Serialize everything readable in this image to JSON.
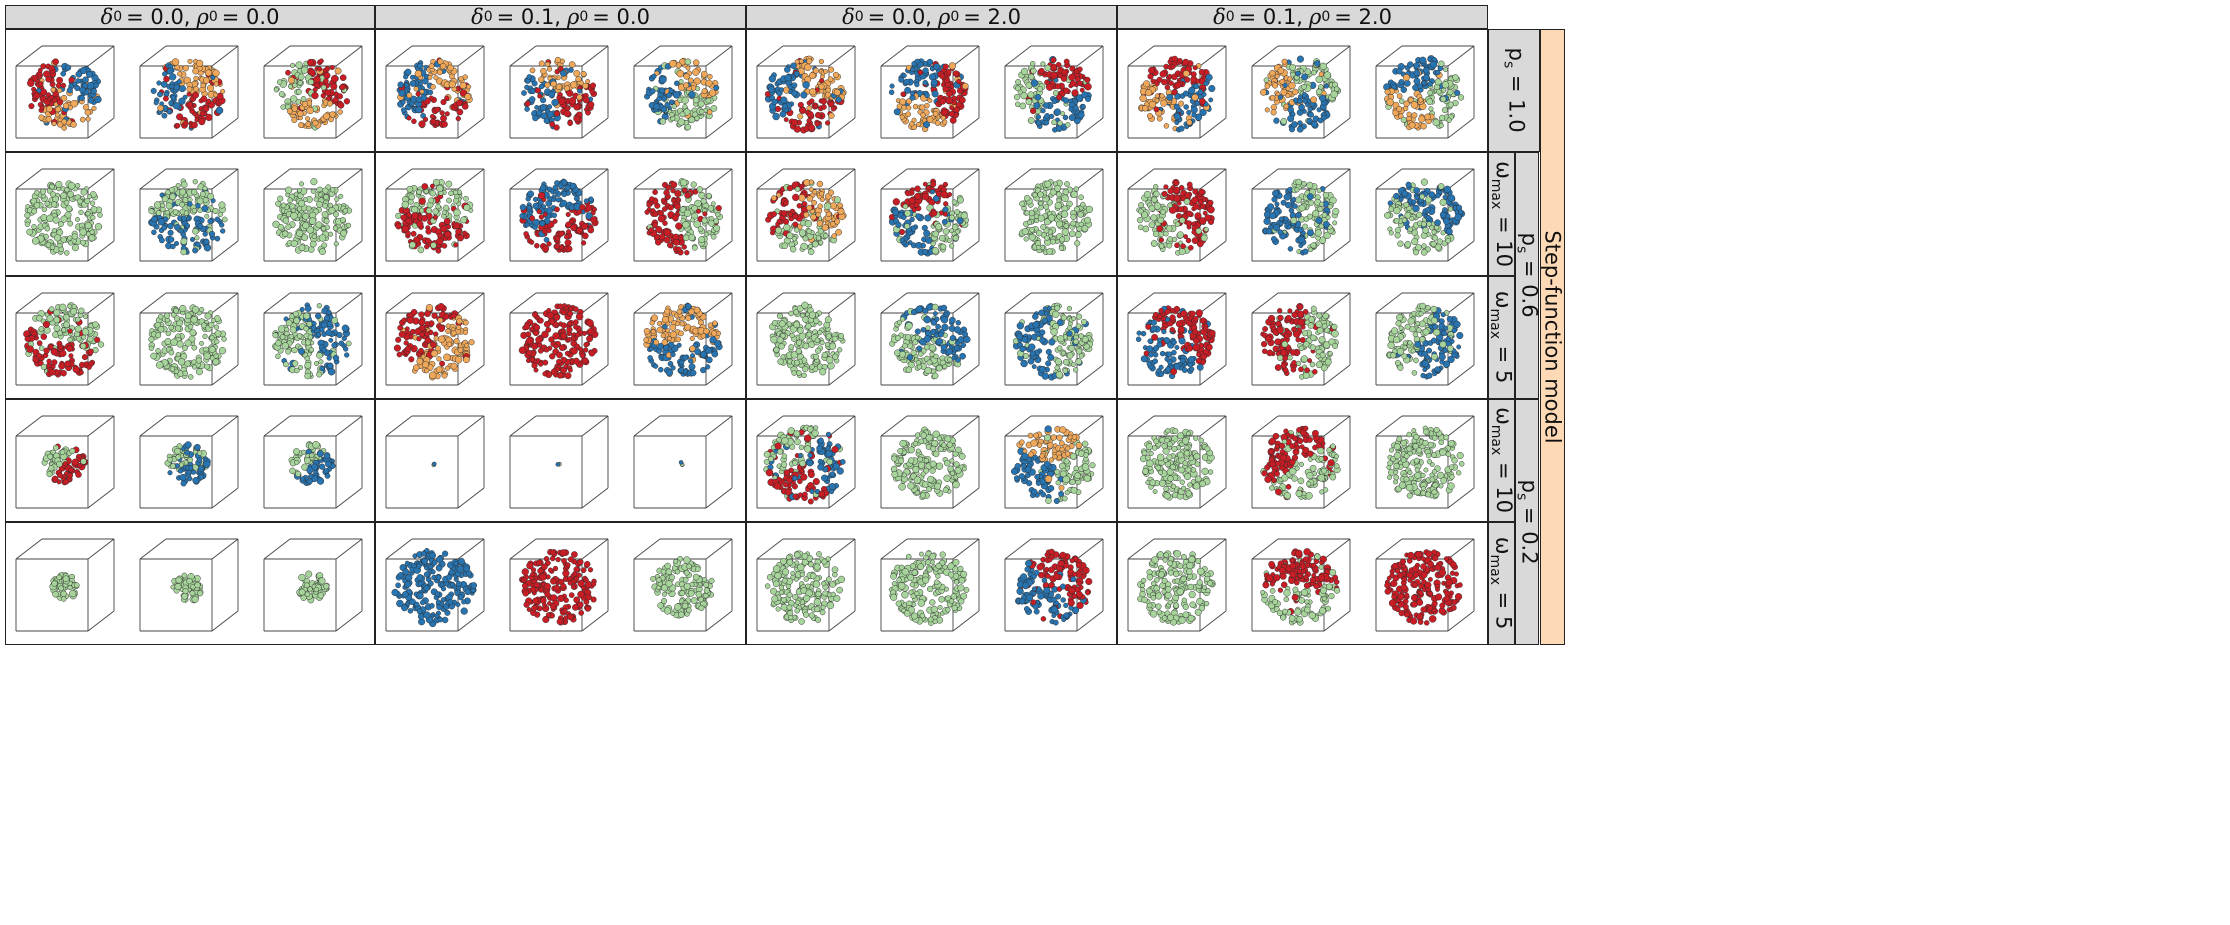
{
  "column_headers": [
    {
      "d_sym": "δ",
      "d_sub": "0",
      "d_val": "= 0.0,",
      "r_sym": "ρ",
      "r_sub": "0",
      "r_val": "= 0.0"
    },
    {
      "d_sym": "δ",
      "d_sub": "0",
      "d_val": "= 0.1,",
      "r_sym": "ρ",
      "r_sub": "0",
      "r_val": "= 0.0"
    },
    {
      "d_sym": "δ",
      "d_sub": "0",
      "d_val": "= 0.0,",
      "r_sym": "ρ",
      "r_sub": "0",
      "r_val": "= 2.0"
    },
    {
      "d_sym": "δ",
      "d_sub": "0",
      "d_val": "= 0.1,",
      "r_sym": "ρ",
      "r_sub": "0",
      "r_val": "= 2.0"
    }
  ],
  "omega_labels": [
    {
      "sym": "ω",
      "sub": "max",
      "val": " = 10"
    },
    {
      "sym": "ω",
      "sub": "max",
      "val": " = 5"
    },
    {
      "sym": "ω",
      "sub": "max",
      "val": " = 10"
    },
    {
      "sym": "ω",
      "sub": "max",
      "val": " = 5"
    }
  ],
  "ps_labels": [
    {
      "sym": "p",
      "sub": "s",
      "val": " = 1.0"
    },
    {
      "sym": "p",
      "sub": "s",
      "val": " = 0.6"
    },
    {
      "sym": "p",
      "sub": "s",
      "val": " = 0.2"
    }
  ],
  "model_label": "Step-function model",
  "colors": {
    "green": "#a6d49b",
    "red": "#c81d25",
    "blue": "#2874b0",
    "orange": "#efa85a",
    "header_bg": "#d9d9d9",
    "model_bg": "#fdd9b5"
  },
  "grid_rows": [
    [
      [
        "orange",
        "red",
        "blue"
      ],
      [
        "orange",
        "red",
        "blue"
      ],
      [
        "green",
        "red",
        "orange"
      ],
      [
        "orange",
        "red",
        "blue"
      ],
      [
        "orange",
        "red",
        "blue"
      ],
      [
        "blue",
        "orange",
        "green"
      ],
      [
        "red",
        "blue",
        "orange"
      ],
      [
        "orange",
        "blue",
        "red"
      ],
      [
        "red",
        "blue",
        "green"
      ],
      [
        "blue",
        "orange",
        "red"
      ],
      [
        "orange",
        "green",
        "blue"
      ],
      [
        "green",
        "orange",
        "blue"
      ]
    ],
    [
      [
        "green"
      ],
      [
        "green",
        "blue"
      ],
      [
        "green"
      ],
      [
        "red",
        "green"
      ],
      [
        "red",
        "blue"
      ],
      [
        "green",
        "red"
      ],
      [
        "red",
        "orange",
        "green"
      ],
      [
        "red",
        "green",
        "blue"
      ],
      [
        "green"
      ],
      [
        "green",
        "red"
      ],
      [
        "green",
        "blue"
      ],
      [
        "blue",
        "green"
      ]
    ],
    [
      [
        "green",
        "red"
      ],
      [
        "green"
      ],
      [
        "green",
        "blue"
      ],
      [
        "orange",
        "red"
      ],
      [
        "red"
      ],
      [
        "orange",
        "blue"
      ],
      [
        "green"
      ],
      [
        "blue",
        "green"
      ],
      [
        "green",
        "blue"
      ],
      [
        "red",
        "blue"
      ],
      [
        "green",
        "red"
      ],
      [
        "blue",
        "green"
      ]
    ],
    [
      [
        "green",
        "red"
      ],
      [
        "green",
        "blue"
      ],
      [
        "green",
        "blue"
      ],
      [
        "tiny"
      ],
      [
        "tiny"
      ],
      [
        "tiny"
      ],
      [
        "green",
        "blue",
        "red"
      ],
      [
        "green"
      ],
      [
        "green",
        "blue",
        "orange"
      ],
      [
        "green"
      ],
      [
        "green",
        "red"
      ],
      [
        "green"
      ]
    ],
    [
      [
        "green"
      ],
      [
        "green"
      ],
      [
        "green"
      ],
      [
        "blue"
      ],
      [
        "red"
      ],
      [
        "green"
      ],
      [
        "green"
      ],
      [
        "green"
      ],
      [
        "blue",
        "red"
      ],
      [
        "green"
      ],
      [
        "green",
        "red"
      ],
      [
        "red"
      ]
    ]
  ],
  "cluster_size": [
    [
      0.95,
      0.95,
      0.95,
      0.95,
      0.95,
      0.95,
      1.0,
      1.0,
      1.0,
      1.0,
      1.0,
      1.0
    ],
    [
      1.0,
      1.0,
      1.0,
      1.0,
      1.0,
      1.0,
      1.0,
      1.0,
      1.0,
      1.0,
      1.0,
      1.0
    ],
    [
      1.0,
      1.0,
      1.0,
      1.0,
      1.0,
      1.0,
      1.0,
      1.0,
      1.0,
      1.0,
      1.0,
      1.0
    ],
    [
      0.55,
      0.55,
      0.55,
      0.06,
      0.06,
      0.06,
      1.05,
      0.95,
      1.05,
      0.95,
      1.0,
      1.0
    ],
    [
      0.35,
      0.4,
      0.4,
      1.05,
      1.0,
      0.8,
      1.0,
      1.0,
      1.0,
      1.0,
      1.0,
      1.0
    ]
  ]
}
